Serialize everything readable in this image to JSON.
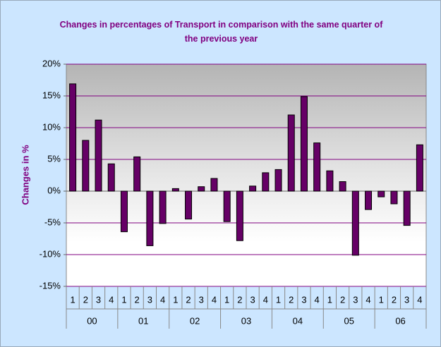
{
  "chart_data": {
    "type": "bar",
    "title": "Changes in percentages of Transport in comparison with the same quarter of the previous year",
    "y_label": "Changes in %",
    "categories": [
      "1",
      "2",
      "3",
      "4",
      "1",
      "2",
      "3",
      "4",
      "1",
      "2",
      "3",
      "4",
      "1",
      "2",
      "3",
      "4",
      "1",
      "2",
      "3",
      "4",
      "1",
      "2",
      "3",
      "4",
      "1",
      "2",
      "3",
      "4"
    ],
    "groups": [
      "00",
      "01",
      "02",
      "03",
      "04",
      "05",
      "06"
    ],
    "values": [
      16.9,
      8.0,
      11.2,
      4.3,
      -6.4,
      5.4,
      -8.6,
      -5.1,
      0.4,
      -4.4,
      0.7,
      2.0,
      -4.8,
      -7.8,
      0.8,
      2.9,
      3.4,
      12.0,
      14.9,
      7.6,
      3.2,
      1.5,
      -10.1,
      -2.9,
      -0.9,
      -2.0,
      -5.4,
      7.3
    ],
    "color": "#660066",
    "ylim": [
      -15,
      20
    ],
    "yticks": [
      {
        "value": -15,
        "label": "-15%"
      },
      {
        "value": -10,
        "label": "-10%"
      },
      {
        "value": -5,
        "label": "-5%"
      },
      {
        "value": 0,
        "label": "0%"
      },
      {
        "value": 5,
        "label": "5%"
      },
      {
        "value": 10,
        "label": "10%"
      },
      {
        "value": 15,
        "label": "15%"
      },
      {
        "value": 20,
        "label": "20%"
      }
    ],
    "grid": true
  }
}
